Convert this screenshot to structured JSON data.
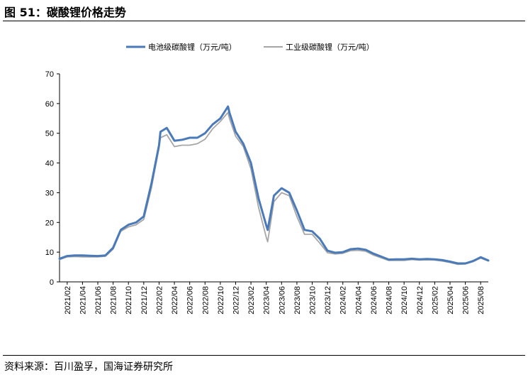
{
  "figure": {
    "title": "图 51：碳酸锂价格走势",
    "source": "资料来源：百川盈孚，国海证券研究所"
  },
  "colors": {
    "series1": "#4a7ab8",
    "series2": "#a6a6a6",
    "axis": "#000000"
  },
  "chart_data": {
    "type": "line",
    "title": "",
    "xlabel": "",
    "ylabel": "",
    "ylim": [
      0,
      70
    ],
    "yticks": [
      0,
      10,
      20,
      30,
      40,
      50,
      60,
      70
    ],
    "grid": false,
    "legend_position": "top",
    "xlim": [
      "2021/01",
      "2025/09"
    ],
    "x_tick_labels": [
      "2021/02",
      "2021/04",
      "2021/06",
      "2021/08",
      "2021/10",
      "2021/12",
      "2022/02",
      "2022/04",
      "2022/06",
      "2022/08",
      "2022/10",
      "2022/12",
      "2023/02",
      "2023/04",
      "2023/06",
      "2023/08",
      "2023/10",
      "2023/12",
      "2024/02",
      "2024/04",
      "2024/06",
      "2024/08",
      "2024/10",
      "2024/12",
      "2025/02",
      "2025/04",
      "2025/06",
      "2025/08"
    ],
    "series": [
      {
        "name": "电池级碳酸锂（万元/吨）",
        "points": [
          [
            "2021/01",
            7.8
          ],
          [
            "2021/02",
            8.7
          ],
          [
            "2021/03",
            8.9
          ],
          [
            "2021/04",
            8.9
          ],
          [
            "2021/05",
            8.8
          ],
          [
            "2021/06",
            8.7
          ],
          [
            "2021/07",
            8.9
          ],
          [
            "2021/08",
            11.5
          ],
          [
            "2021/09",
            17.5
          ],
          [
            "2021/10",
            19.2
          ],
          [
            "2021/11",
            20.0
          ],
          [
            "2021/12",
            22.0
          ],
          [
            "2022/01",
            33.0
          ],
          [
            "2022/02",
            46.0
          ],
          [
            "2022/02",
            50.5
          ],
          [
            "2022/03",
            51.8
          ],
          [
            "2022/04",
            47.5
          ],
          [
            "2022/05",
            47.8
          ],
          [
            "2022/06",
            48.5
          ],
          [
            "2022/07",
            48.5
          ],
          [
            "2022/08",
            50.0
          ],
          [
            "2022/09",
            53.0
          ],
          [
            "2022/10",
            55.0
          ],
          [
            "2022/11",
            59.0
          ],
          [
            "2022/11",
            57.0
          ],
          [
            "2022/12",
            50.5
          ],
          [
            "2023/01",
            46.5
          ],
          [
            "2023/02",
            40.0
          ],
          [
            "2023/03",
            28.0
          ],
          [
            "2023/04",
            19.0
          ],
          [
            "2023/04",
            17.5
          ],
          [
            "2023/05",
            29.0
          ],
          [
            "2023/06",
            31.5
          ],
          [
            "2023/07",
            30.0
          ],
          [
            "2023/08",
            24.0
          ],
          [
            "2023/09",
            17.5
          ],
          [
            "2023/10",
            17.0
          ],
          [
            "2023/11",
            14.5
          ],
          [
            "2023/12",
            10.5
          ],
          [
            "2024/01",
            9.8
          ],
          [
            "2024/02",
            10.0
          ],
          [
            "2024/03",
            11.0
          ],
          [
            "2024/04",
            11.2
          ],
          [
            "2024/05",
            10.8
          ],
          [
            "2024/06",
            9.5
          ],
          [
            "2024/07",
            8.5
          ],
          [
            "2024/08",
            7.5
          ],
          [
            "2024/09",
            7.6
          ],
          [
            "2024/10",
            7.6
          ],
          [
            "2024/11",
            7.8
          ],
          [
            "2024/12",
            7.6
          ],
          [
            "2025/01",
            7.7
          ],
          [
            "2025/02",
            7.6
          ],
          [
            "2025/03",
            7.3
          ],
          [
            "2025/04",
            6.8
          ],
          [
            "2025/05",
            6.2
          ],
          [
            "2025/06",
            6.2
          ],
          [
            "2025/07",
            7.0
          ],
          [
            "2025/08",
            8.3
          ],
          [
            "2025/09",
            7.2
          ]
        ]
      },
      {
        "name": "工业级碳酸锂（万元/吨）",
        "points": [
          [
            "2021/01",
            7.5
          ],
          [
            "2021/02",
            8.4
          ],
          [
            "2021/03",
            8.5
          ],
          [
            "2021/04",
            8.4
          ],
          [
            "2021/05",
            8.4
          ],
          [
            "2021/06",
            8.4
          ],
          [
            "2021/07",
            8.6
          ],
          [
            "2021/08",
            11.0
          ],
          [
            "2021/09",
            17.0
          ],
          [
            "2021/10",
            18.5
          ],
          [
            "2021/11",
            19.2
          ],
          [
            "2021/12",
            21.0
          ],
          [
            "2022/01",
            31.5
          ],
          [
            "2022/02",
            45.0
          ],
          [
            "2022/02",
            48.5
          ],
          [
            "2022/03",
            49.5
          ],
          [
            "2022/04",
            45.5
          ],
          [
            "2022/05",
            46.0
          ],
          [
            "2022/06",
            46.0
          ],
          [
            "2022/07",
            46.5
          ],
          [
            "2022/08",
            48.0
          ],
          [
            "2022/09",
            51.5
          ],
          [
            "2022/10",
            54.0
          ],
          [
            "2022/11",
            57.0
          ],
          [
            "2022/11",
            55.0
          ],
          [
            "2022/12",
            49.0
          ],
          [
            "2023/01",
            45.5
          ],
          [
            "2023/02",
            38.0
          ],
          [
            "2023/03",
            25.0
          ],
          [
            "2023/04",
            15.0
          ],
          [
            "2023/04",
            13.5
          ],
          [
            "2023/05",
            27.0
          ],
          [
            "2023/06",
            30.0
          ],
          [
            "2023/07",
            29.0
          ],
          [
            "2023/08",
            22.0
          ],
          [
            "2023/09",
            16.0
          ],
          [
            "2023/10",
            16.0
          ],
          [
            "2023/11",
            13.0
          ],
          [
            "2023/12",
            9.8
          ],
          [
            "2024/01",
            9.4
          ],
          [
            "2024/02",
            9.6
          ],
          [
            "2024/03",
            10.5
          ],
          [
            "2024/04",
            10.6
          ],
          [
            "2024/05",
            10.3
          ],
          [
            "2024/06",
            9.0
          ],
          [
            "2024/07",
            8.1
          ],
          [
            "2024/08",
            7.2
          ],
          [
            "2024/09",
            7.2
          ],
          [
            "2024/10",
            7.2
          ],
          [
            "2024/11",
            7.5
          ],
          [
            "2024/12",
            7.3
          ],
          [
            "2025/01",
            7.4
          ],
          [
            "2025/02",
            7.3
          ],
          [
            "2025/03",
            7.0
          ],
          [
            "2025/04",
            6.5
          ],
          [
            "2025/05",
            5.9
          ],
          [
            "2025/06",
            6.0
          ],
          [
            "2025/07",
            6.8
          ],
          [
            "2025/08",
            8.0
          ],
          [
            "2025/09",
            7.0
          ]
        ]
      }
    ]
  }
}
